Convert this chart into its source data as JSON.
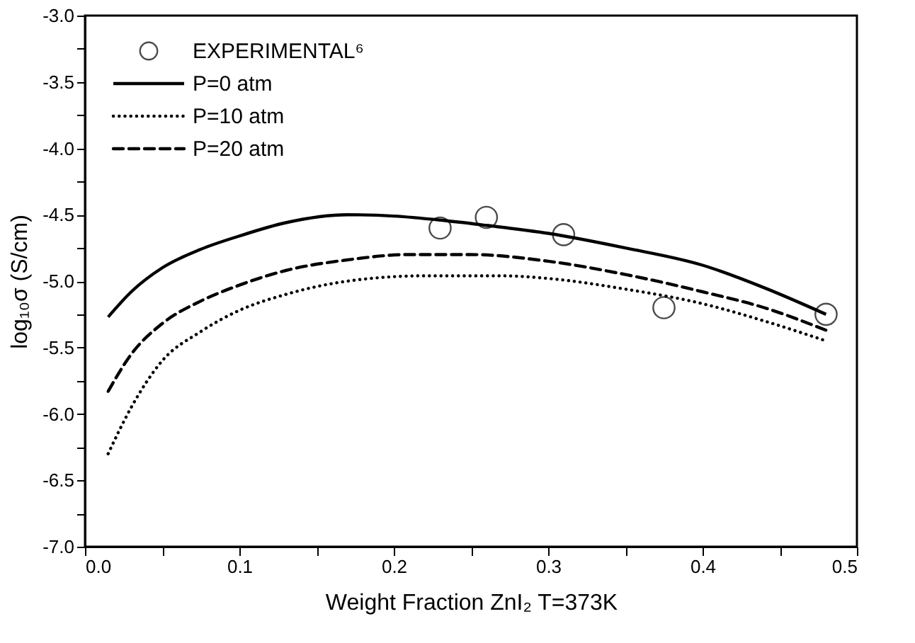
{
  "chart_data": {
    "type": "line",
    "xlabel": "Weight Fraction ZnI₂ T=373K",
    "ylabel": "log₁₀σ (S/cm)",
    "xlim": [
      0,
      0.5
    ],
    "ylim": [
      -7,
      -3
    ],
    "xticks": [
      {
        "value": 0,
        "label": "0.0"
      },
      {
        "value": 0.05,
        "label": null
      },
      0.1,
      {
        "value": 0.15,
        "label": null
      },
      0.2,
      {
        "value": 0.25,
        "label": null
      },
      0.3,
      {
        "value": 0.35,
        "label": null
      },
      0.4,
      {
        "value": 0.45,
        "label": null
      },
      0.5
    ],
    "yticks": [
      {
        "value": -7,
        "label": "-7.0"
      },
      {
        "value": -6.75,
        "label": null
      },
      {
        "value": -6.5,
        "label": "-6.5"
      },
      {
        "value": -6.25,
        "label": null
      },
      {
        "value": -6,
        "label": "-6.0"
      },
      {
        "value": -5.75,
        "label": null
      },
      {
        "value": -5.5,
        "label": "-5.5"
      },
      {
        "value": -5.25,
        "label": null
      },
      {
        "value": -5,
        "label": "-5.0"
      },
      {
        "value": -4.75,
        "label": null
      },
      {
        "value": -4.5,
        "label": "-4.5"
      },
      {
        "value": -4.25,
        "label": null
      },
      {
        "value": -4,
        "label": "-4.0"
      },
      {
        "value": -3.75,
        "label": null
      },
      {
        "value": -3.5,
        "label": "-3.5"
      },
      {
        "value": -3.25,
        "label": null
      },
      {
        "value": -3,
        "label": "-3.0"
      }
    ],
    "grid": false,
    "legend": "top left",
    "series": [
      {
        "name": "EXPERIMENTAL⁶",
        "type": "scatter",
        "marker": "circle",
        "color": "#000000",
        "x": [
          0.23,
          0.26,
          0.31,
          0.375,
          0.48
        ],
        "values": [
          -4.6,
          -4.52,
          -4.65,
          -5.2,
          -5.25
        ]
      },
      {
        "name": "P=0 atm",
        "type": "line",
        "line_style": "solid",
        "color": "#000000",
        "x": [
          0.015,
          0.03,
          0.05,
          0.075,
          0.1,
          0.13,
          0.17,
          0.2,
          0.23,
          0.26,
          0.3,
          0.35,
          0.4,
          0.44,
          0.48
        ],
        "values": [
          -5.27,
          -5.08,
          -4.9,
          -4.76,
          -4.66,
          -4.56,
          -4.5,
          -4.51,
          -4.54,
          -4.58,
          -4.64,
          -4.75,
          -4.88,
          -5.05,
          -5.25
        ]
      },
      {
        "name": "P=10 atm",
        "type": "line",
        "line_style": "dotted",
        "color": "#000000",
        "x": [
          0.015,
          0.03,
          0.05,
          0.075,
          0.1,
          0.13,
          0.17,
          0.22,
          0.27,
          0.3,
          0.35,
          0.4,
          0.44,
          0.48
        ],
        "values": [
          -6.3,
          -5.95,
          -5.6,
          -5.38,
          -5.22,
          -5.1,
          -5.0,
          -4.96,
          -4.96,
          -4.98,
          -5.06,
          -5.17,
          -5.3,
          -5.45
        ]
      },
      {
        "name": "P=20 atm",
        "type": "line",
        "line_style": "dashed",
        "color": "#000000",
        "x": [
          0.015,
          0.03,
          0.05,
          0.075,
          0.1,
          0.13,
          0.17,
          0.21,
          0.25,
          0.3,
          0.35,
          0.4,
          0.44,
          0.48
        ],
        "values": [
          -5.83,
          -5.55,
          -5.32,
          -5.15,
          -5.03,
          -4.92,
          -4.84,
          -4.8,
          -4.8,
          -4.85,
          -4.95,
          -5.08,
          -5.2,
          -5.37
        ]
      }
    ]
  }
}
